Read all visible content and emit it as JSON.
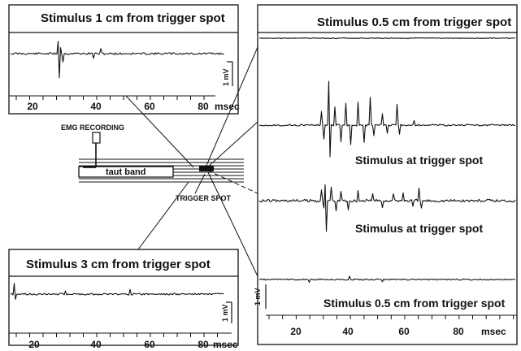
{
  "panels": {
    "top_left": {
      "title": "Stimulus 1 cm from trigger spot",
      "scale": "1 mV",
      "ticks": [
        "20",
        "40",
        "60",
        "80"
      ],
      "unit": "msec"
    },
    "bottom_left": {
      "title": "Stimulus 3 cm from trigger spot",
      "scale": "1 mV",
      "ticks": [
        "20",
        "40",
        "60",
        "80"
      ],
      "unit": "msec"
    },
    "right": {
      "title": "Stimulus 0.5 cm from trigger spot",
      "labels": [
        "Stimulus at trigger spot",
        "Stimulus at trigger spot",
        "Stimulus 0.5 cm from trigger spot"
      ],
      "scale": "1 mV",
      "ticks": [
        "20",
        "40",
        "60",
        "80"
      ],
      "unit": "msec"
    }
  },
  "schematic": {
    "emg_label": "EMG RECORDING",
    "band_label": "taut band",
    "trigger_label": "TRIGGER SPOT"
  },
  "colors": {
    "ink": "#111111",
    "background": "#ffffff"
  }
}
